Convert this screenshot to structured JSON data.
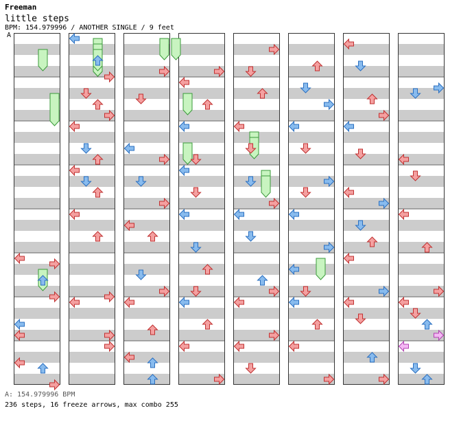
{
  "header": {
    "artist": "Freeman",
    "title": "little steps",
    "info": "BPM: 154.979996 / ANOTHER SINGLE / 9 feet",
    "bpm_marker": "A"
  },
  "footer": {
    "bpm_line": "A: 154.979996 BPM",
    "stats": "236 steps, 16 freeze arrows, max combo 255"
  },
  "colors": {
    "stripe": "#cccccc",
    "note_red": "#f4a0a0",
    "note_red_stroke": "#c03030",
    "note_blue": "#88bbee",
    "note_blue_stroke": "#2a6fc0",
    "freeze": "#c8f4c0",
    "freeze_stroke": "#3a9a3a",
    "note_pink": "#f4b8f4"
  },
  "chart_data": {
    "type": "step-chart",
    "columns": 8,
    "measures_per_column": 8,
    "notes": [
      [
        0,
        5,
        0,
        "l",
        "r"
      ],
      [
        0,
        5,
        1,
        "r",
        "r"
      ],
      [
        0,
        5,
        4,
        "u",
        "b"
      ],
      [
        0,
        5,
        7,
        "r",
        "r"
      ],
      [
        0,
        6,
        4,
        "l",
        "b"
      ],
      [
        0,
        6,
        6,
        "l",
        "r"
      ],
      [
        0,
        7,
        3,
        "l",
        "r"
      ],
      [
        0,
        7,
        4,
        "u",
        "b"
      ],
      [
        0,
        7,
        7,
        "r",
        "r"
      ],
      [
        1,
        0,
        0,
        "l",
        "b"
      ],
      [
        1,
        0,
        4,
        "u",
        "b"
      ],
      [
        1,
        0,
        7,
        "r",
        "r"
      ],
      [
        1,
        1,
        6,
        "r",
        "r"
      ],
      [
        1,
        1,
        2,
        "d",
        "r"
      ],
      [
        1,
        1,
        4,
        "u",
        "r"
      ],
      [
        1,
        2,
        0,
        "l",
        "r"
      ],
      [
        1,
        2,
        4,
        "d",
        "b"
      ],
      [
        1,
        2,
        6,
        "u",
        "r"
      ],
      [
        1,
        3,
        0,
        "l",
        "r"
      ],
      [
        1,
        3,
        2,
        "d",
        "b"
      ],
      [
        1,
        3,
        4,
        "u",
        "r"
      ],
      [
        1,
        4,
        0,
        "l",
        "r"
      ],
      [
        1,
        4,
        4,
        "u",
        "r"
      ],
      [
        1,
        5,
        7,
        "r",
        "r"
      ],
      [
        1,
        6,
        0,
        "l",
        "r"
      ],
      [
        1,
        6,
        6,
        "r",
        "r"
      ],
      [
        1,
        7,
        0,
        "r",
        "r"
      ],
      [
        2,
        0,
        6,
        "r",
        "r"
      ],
      [
        2,
        1,
        3,
        "d",
        "r"
      ],
      [
        2,
        2,
        4,
        "l",
        "b"
      ],
      [
        2,
        2,
        6,
        "r",
        "r"
      ],
      [
        2,
        3,
        2,
        "d",
        "b"
      ],
      [
        2,
        3,
        6,
        "r",
        "r"
      ],
      [
        2,
        4,
        2,
        "l",
        "r"
      ],
      [
        2,
        4,
        4,
        "u",
        "r"
      ],
      [
        2,
        5,
        3,
        "d",
        "b"
      ],
      [
        2,
        5,
        6,
        "r",
        "r"
      ],
      [
        2,
        6,
        0,
        "l",
        "r"
      ],
      [
        2,
        6,
        5,
        "u",
        "r"
      ],
      [
        2,
        7,
        2,
        "l",
        "r"
      ],
      [
        2,
        7,
        6,
        "u",
        "b"
      ],
      [
        2,
        7,
        3,
        "u",
        "b"
      ],
      [
        3,
        0,
        6,
        "r",
        "r"
      ],
      [
        3,
        1,
        0,
        "l",
        "r"
      ],
      [
        3,
        1,
        4,
        "u",
        "r"
      ],
      [
        3,
        2,
        0,
        "l",
        "b"
      ],
      [
        3,
        2,
        6,
        "d",
        "r"
      ],
      [
        3,
        3,
        0,
        "l",
        "b"
      ],
      [
        3,
        3,
        4,
        "d",
        "r"
      ],
      [
        3,
        4,
        0,
        "l",
        "b"
      ],
      [
        3,
        4,
        6,
        "d",
        "b"
      ],
      [
        3,
        5,
        2,
        "u",
        "r"
      ],
      [
        3,
        5,
        6,
        "d",
        "r"
      ],
      [
        3,
        6,
        4,
        "u",
        "r"
      ],
      [
        3,
        6,
        0,
        "l",
        "b"
      ],
      [
        3,
        7,
        0,
        "l",
        "r"
      ],
      [
        3,
        7,
        6,
        "r",
        "r"
      ],
      [
        4,
        0,
        2,
        "r",
        "r"
      ],
      [
        4,
        0,
        6,
        "d",
        "r"
      ],
      [
        4,
        1,
        2,
        "u",
        "r"
      ],
      [
        4,
        2,
        0,
        "l",
        "r"
      ],
      [
        4,
        2,
        4,
        "d",
        "r"
      ],
      [
        4,
        3,
        2,
        "d",
        "b"
      ],
      [
        4,
        3,
        6,
        "r",
        "r"
      ],
      [
        4,
        4,
        0,
        "l",
        "b"
      ],
      [
        4,
        4,
        4,
        "d",
        "b"
      ],
      [
        4,
        5,
        4,
        "u",
        "b"
      ],
      [
        4,
        5,
        6,
        "r",
        "r"
      ],
      [
        4,
        6,
        0,
        "l",
        "r"
      ],
      [
        4,
        6,
        6,
        "r",
        "r"
      ],
      [
        4,
        7,
        0,
        "l",
        "r"
      ],
      [
        4,
        7,
        4,
        "d",
        "r"
      ],
      [
        5,
        0,
        5,
        "u",
        "r"
      ],
      [
        5,
        1,
        1,
        "d",
        "b"
      ],
      [
        5,
        1,
        4,
        "r",
        "b"
      ],
      [
        5,
        2,
        0,
        "l",
        "b"
      ],
      [
        5,
        2,
        4,
        "d",
        "r"
      ],
      [
        5,
        3,
        2,
        "r",
        "b"
      ],
      [
        5,
        3,
        4,
        "d",
        "r"
      ],
      [
        5,
        4,
        0,
        "l",
        "b"
      ],
      [
        5,
        4,
        6,
        "r",
        "b"
      ],
      [
        5,
        5,
        2,
        "l",
        "b"
      ],
      [
        5,
        5,
        6,
        "d",
        "r"
      ],
      [
        5,
        6,
        0,
        "l",
        "b"
      ],
      [
        5,
        6,
        4,
        "u",
        "r"
      ],
      [
        5,
        7,
        0,
        "l",
        "r"
      ],
      [
        5,
        7,
        6,
        "r",
        "r"
      ],
      [
        6,
        0,
        1,
        "l",
        "r"
      ],
      [
        6,
        0,
        5,
        "d",
        "b"
      ],
      [
        6,
        1,
        3,
        "u",
        "r"
      ],
      [
        6,
        1,
        6,
        "r",
        "r"
      ],
      [
        6,
        2,
        0,
        "l",
        "b"
      ],
      [
        6,
        2,
        5,
        "d",
        "r"
      ],
      [
        6,
        3,
        4,
        "l",
        "r"
      ],
      [
        6,
        3,
        6,
        "r",
        "b"
      ],
      [
        6,
        4,
        2,
        "d",
        "b"
      ],
      [
        6,
        4,
        5,
        "u",
        "r"
      ],
      [
        6,
        5,
        0,
        "l",
        "r"
      ],
      [
        6,
        5,
        6,
        "r",
        "b"
      ],
      [
        6,
        6,
        0,
        "l",
        "r"
      ],
      [
        6,
        6,
        3,
        "d",
        "r"
      ],
      [
        6,
        7,
        2,
        "u",
        "b"
      ],
      [
        6,
        7,
        6,
        "r",
        "r"
      ],
      [
        7,
        1,
        1,
        "r",
        "b"
      ],
      [
        7,
        1,
        2,
        "d",
        "b"
      ],
      [
        7,
        2,
        6,
        "l",
        "r"
      ],
      [
        7,
        3,
        1,
        "d",
        "r"
      ],
      [
        7,
        4,
        0,
        "l",
        "r"
      ],
      [
        7,
        4,
        6,
        "u",
        "r"
      ],
      [
        7,
        5,
        6,
        "r",
        "r"
      ],
      [
        7,
        6,
        2,
        "d",
        "r"
      ],
      [
        7,
        6,
        0,
        "l",
        "r"
      ],
      [
        7,
        6,
        4,
        "u",
        "b"
      ],
      [
        7,
        6,
        6,
        "r",
        "p"
      ],
      [
        7,
        7,
        0,
        "l",
        "p"
      ],
      [
        7,
        7,
        4,
        "d",
        "b"
      ],
      [
        7,
        7,
        6,
        "u",
        "b"
      ]
    ],
    "freezes": [
      [
        1,
        2,
        0,
        1,
        1,
        5,
        3
      ],
      [
        1,
        2,
        0,
        1,
        0,
        5,
        3
      ],
      [
        1,
        2,
        0,
        2,
        1,
        1,
        4
      ],
      [
        1,
        2,
        0,
        3,
        1,
        1,
        4
      ],
      [
        0,
        2,
        5,
        3,
        1,
        2,
        3
      ],
      [
        0,
        2,
        0,
        3,
        1,
        2,
        3
      ],
      [
        0,
        3,
        1,
        3,
        1,
        4,
        3
      ],
      [
        2,
        3,
        0,
        1,
        1,
        2,
        3
      ],
      [
        2,
        4,
        0,
        1,
        1,
        2,
        3
      ],
      [
        2,
        5,
        2,
        4,
        3,
        1,
        7
      ],
      [
        2,
        5,
        1,
        3,
        1,
        2,
        0
      ],
      [
        3,
        6,
        2,
        2,
        1,
        2,
        2
      ],
      [
        3,
        6,
        2,
        3,
        1,
        2,
        6
      ],
      [
        3,
        7,
        3,
        1,
        3,
        1,
        4
      ],
      [
        3,
        7,
        3,
        2,
        3,
        1,
        4
      ],
      [
        4,
        7,
        5,
        1,
        1,
        2,
        3
      ]
    ]
  }
}
